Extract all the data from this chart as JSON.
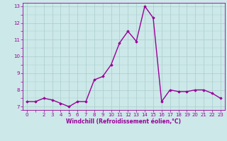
{
  "x": [
    0,
    1,
    2,
    3,
    4,
    5,
    6,
    7,
    8,
    9,
    10,
    11,
    12,
    13,
    14,
    15,
    16,
    17,
    18,
    19,
    20,
    21,
    22,
    23
  ],
  "y": [
    7.3,
    7.3,
    7.5,
    7.4,
    7.2,
    7.0,
    7.3,
    7.3,
    8.6,
    8.8,
    9.5,
    10.8,
    11.5,
    10.9,
    13.0,
    12.3,
    7.3,
    8.0,
    7.9,
    7.9,
    8.0,
    8.0,
    7.8,
    7.5
  ],
  "line_color": "#990099",
  "marker": "D",
  "marker_size": 1.8,
  "bg_color": "#cce8e8",
  "grid_color": "#aacccc",
  "xlabel": "Windchill (Refroidissement éolien,°C)",
  "xlim": [
    -0.5,
    23.5
  ],
  "ylim": [
    6.8,
    13.2
  ],
  "yticks": [
    7,
    8,
    9,
    10,
    11,
    12,
    13
  ],
  "xticks": [
    0,
    2,
    3,
    4,
    5,
    6,
    7,
    8,
    9,
    10,
    11,
    12,
    13,
    14,
    15,
    16,
    17,
    18,
    19,
    20,
    21,
    22,
    23
  ],
  "tick_label_color": "#990099",
  "axis_color": "#990099",
  "linewidth": 1.0,
  "tick_fontsize": 5.0,
  "xlabel_fontsize": 5.5
}
